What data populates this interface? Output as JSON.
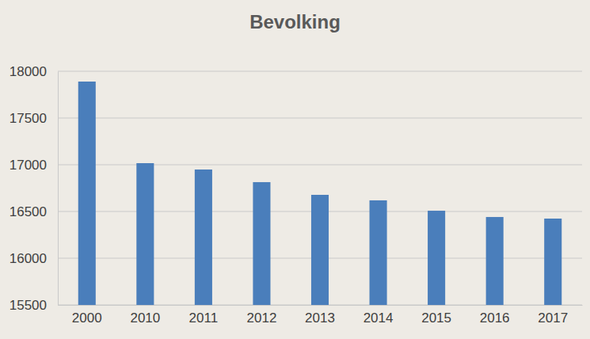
{
  "chart_data": {
    "type": "bar",
    "title": "Bevolking",
    "categories": [
      "2000",
      "2010",
      "2011",
      "2012",
      "2013",
      "2014",
      "2015",
      "2016",
      "2017"
    ],
    "values": [
      17890,
      17017,
      16949,
      16814,
      16678,
      16619,
      16508,
      16441,
      16424
    ],
    "color": "#4a7ebb",
    "ylim": [
      15500,
      18000
    ],
    "yticks": [
      15500,
      16000,
      16500,
      17000,
      17500,
      18000
    ],
    "grid": true
  }
}
